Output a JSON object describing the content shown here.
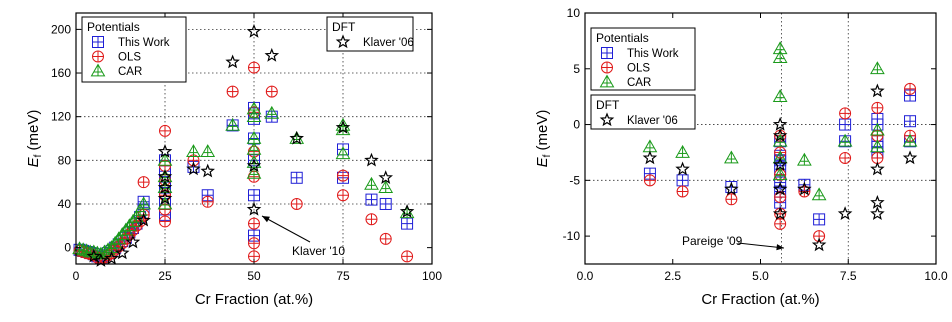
{
  "chart_data": [
    {
      "type": "scatter",
      "xlabel": "Cr Fraction (at.%)",
      "ylabel": "E",
      "ylabel_sub": "f",
      "ylabel_unit": " (meV)",
      "xlim": [
        0,
        100
      ],
      "ylim": [
        -15,
        215
      ],
      "xticks": [
        0,
        25,
        50,
        75,
        100
      ],
      "yticks": [
        0,
        40,
        80,
        120,
        160,
        200
      ],
      "grid": "dotted at x=25,50,75 and y=40,80,120,160,200",
      "legends": [
        {
          "placement": "top-left",
          "title": "Potentials",
          "entries": [
            "This Work",
            "OLS",
            "CAR"
          ]
        },
        {
          "placement": "top-right",
          "title": "DFT",
          "entries": [
            "Klaver '06"
          ]
        }
      ],
      "annotations": [
        {
          "text": "Klaver '10",
          "x": 50,
          "y": 35
        }
      ],
      "series": [
        {
          "name": "This Work",
          "color": "#1f1fd6",
          "marker": "square-plus",
          "points": [
            [
              1,
              -2
            ],
            [
              2,
              -3
            ],
            [
              3,
              -4
            ],
            [
              4,
              -5
            ],
            [
              5,
              -6
            ],
            [
              6,
              -8
            ],
            [
              7,
              -9
            ],
            [
              8,
              -7
            ],
            [
              9,
              -5
            ],
            [
              10,
              -3
            ],
            [
              11,
              0
            ],
            [
              12,
              3
            ],
            [
              13,
              6
            ],
            [
              14,
              9
            ],
            [
              15,
              14
            ],
            [
              16,
              18
            ],
            [
              17,
              22
            ],
            [
              18,
              28
            ],
            [
              19,
              35
            ],
            [
              19,
              42
            ],
            [
              25,
              30
            ],
            [
              25,
              40
            ],
            [
              25,
              50
            ],
            [
              25,
              60
            ],
            [
              25,
              70
            ],
            [
              25,
              80
            ],
            [
              33,
              74
            ],
            [
              37,
              48
            ],
            [
              44,
              112
            ],
            [
              50,
              11
            ],
            [
              50,
              48
            ],
            [
              50,
              80
            ],
            [
              50,
              100
            ],
            [
              50,
              118
            ],
            [
              50,
              128
            ],
            [
              55,
              120
            ],
            [
              62,
              64
            ],
            [
              75,
              64
            ],
            [
              75,
              90
            ],
            [
              83,
              44
            ],
            [
              87,
              40
            ],
            [
              93,
              22
            ]
          ]
        },
        {
          "name": "OLS",
          "color": "#e01a1a",
          "marker": "circle-plus",
          "points": [
            [
              1,
              -3
            ],
            [
              2,
              -4
            ],
            [
              3,
              -5
            ],
            [
              4,
              -6
            ],
            [
              5,
              -7
            ],
            [
              6,
              -9
            ],
            [
              7,
              -10
            ],
            [
              8,
              -9
            ],
            [
              9,
              -7
            ],
            [
              10,
              -5
            ],
            [
              11,
              -2
            ],
            [
              12,
              1
            ],
            [
              13,
              4
            ],
            [
              14,
              8
            ],
            [
              15,
              12
            ],
            [
              16,
              16
            ],
            [
              17,
              20
            ],
            [
              18,
              24
            ],
            [
              19,
              30
            ],
            [
              19,
              60
            ],
            [
              25,
              24
            ],
            [
              25,
              35
            ],
            [
              25,
              48
            ],
            [
              25,
              62
            ],
            [
              25,
              75
            ],
            [
              25,
              107
            ],
            [
              33,
              80
            ],
            [
              37,
              42
            ],
            [
              44,
              143
            ],
            [
              50,
              -8
            ],
            [
              50,
              4
            ],
            [
              50,
              22
            ],
            [
              50,
              65
            ],
            [
              50,
              88
            ],
            [
              50,
              124
            ],
            [
              50,
              165
            ],
            [
              55,
              143
            ],
            [
              62,
              40
            ],
            [
              75,
              48
            ],
            [
              75,
              66
            ],
            [
              83,
              26
            ],
            [
              87,
              8
            ],
            [
              93,
              -8
            ]
          ]
        },
        {
          "name": "CAR",
          "color": "#1a9a1a",
          "marker": "triangle-plus",
          "points": [
            [
              1,
              -1
            ],
            [
              2,
              -2
            ],
            [
              3,
              -3
            ],
            [
              4,
              -4
            ],
            [
              5,
              -4
            ],
            [
              6,
              -5
            ],
            [
              7,
              -6
            ],
            [
              8,
              -4
            ],
            [
              9,
              -2
            ],
            [
              10,
              0
            ],
            [
              11,
              4
            ],
            [
              12,
              8
            ],
            [
              13,
              12
            ],
            [
              14,
              16
            ],
            [
              15,
              20
            ],
            [
              16,
              24
            ],
            [
              17,
              28
            ],
            [
              18,
              34
            ],
            [
              19,
              40
            ],
            [
              25,
              40
            ],
            [
              25,
              55
            ],
            [
              25,
              65
            ],
            [
              25,
              80
            ],
            [
              33,
              88
            ],
            [
              37,
              88
            ],
            [
              44,
              112
            ],
            [
              50,
              68
            ],
            [
              50,
              78
            ],
            [
              50,
              90
            ],
            [
              50,
              100
            ],
            [
              50,
              120
            ],
            [
              50,
              127
            ],
            [
              55,
              123
            ],
            [
              62,
              100
            ],
            [
              75,
              86
            ],
            [
              75,
              108
            ],
            [
              75,
              112
            ],
            [
              83,
              58
            ],
            [
              87,
              55
            ],
            [
              93,
              32
            ]
          ]
        },
        {
          "name": "Klaver '06",
          "color": "#000000",
          "marker": "star",
          "points": [
            [
              5,
              -8
            ],
            [
              7,
              -12
            ],
            [
              10,
              -10
            ],
            [
              13,
              -5
            ],
            [
              16,
              5
            ],
            [
              19,
              25
            ],
            [
              25,
              45
            ],
            [
              25,
              55
            ],
            [
              25,
              65
            ],
            [
              25,
              88
            ],
            [
              33,
              72
            ],
            [
              37,
              70
            ],
            [
              44,
              170
            ],
            [
              50,
              35
            ],
            [
              50,
              75
            ],
            [
              50,
              198
            ],
            [
              55,
              176
            ],
            [
              62,
              100
            ],
            [
              75,
              110
            ],
            [
              83,
              80
            ],
            [
              87,
              64
            ],
            [
              93,
              33
            ]
          ]
        }
      ]
    },
    {
      "type": "scatter",
      "xlabel": "Cr Fraction (at.%)",
      "ylabel": "E",
      "ylabel_sub": "f",
      "ylabel_unit": " (meV)",
      "xlim": [
        0,
        10
      ],
      "ylim": [
        -12.5,
        10
      ],
      "xticks": [
        "0.0",
        "2.5",
        "5.0",
        "7.5",
        "10.0"
      ],
      "yticks": [
        10,
        5,
        0,
        -5,
        -10
      ],
      "grid": "dotted at x=5.6,7.5 and y=0,-5",
      "legends": [
        {
          "placement": "top-left",
          "title": "Potentials",
          "entries": [
            "This Work",
            "OLS",
            "CAR"
          ]
        },
        {
          "placement": "left",
          "title": "DFT",
          "entries": [
            "Klaver '06"
          ]
        }
      ],
      "annotations": [
        {
          "text": "Pareige '09",
          "x": 6.7,
          "y": -10.8
        }
      ],
      "series": [
        {
          "name": "This Work",
          "color": "#1f1fd6",
          "marker": "square-plus",
          "points": [
            [
              1.85,
              -4.4
            ],
            [
              2.78,
              -5.0
            ],
            [
              4.17,
              -5.6
            ],
            [
              5.56,
              -2.8
            ],
            [
              5.56,
              -3.2
            ],
            [
              5.56,
              -4.0
            ],
            [
              5.56,
              -5.2
            ],
            [
              5.56,
              -6.0
            ],
            [
              5.56,
              -7.0
            ],
            [
              5.56,
              -1.5
            ],
            [
              6.25,
              -5.4
            ],
            [
              6.67,
              -8.5
            ],
            [
              7.41,
              0
            ],
            [
              7.41,
              -1.5
            ],
            [
              8.33,
              0.5
            ],
            [
              8.33,
              0
            ],
            [
              8.33,
              -1.5
            ],
            [
              8.33,
              -2.0
            ],
            [
              8.33,
              -2.5
            ],
            [
              9.26,
              2.6
            ],
            [
              9.26,
              0.3
            ],
            [
              9.26,
              -1.5
            ]
          ]
        },
        {
          "name": "OLS",
          "color": "#e01a1a",
          "marker": "circle-plus",
          "points": [
            [
              1.85,
              -5.0
            ],
            [
              2.78,
              -6.0
            ],
            [
              4.17,
              -6.7
            ],
            [
              5.56,
              -1.0
            ],
            [
              5.56,
              -2.5
            ],
            [
              5.56,
              -4.5
            ],
            [
              5.56,
              -6.5
            ],
            [
              5.56,
              -8.0
            ],
            [
              5.56,
              -8.9
            ],
            [
              6.25,
              -6.0
            ],
            [
              6.67,
              -10.0
            ],
            [
              7.41,
              1.0
            ],
            [
              7.41,
              -3.0
            ],
            [
              8.33,
              1.5
            ],
            [
              8.33,
              -1.0
            ],
            [
              8.33,
              -3.0
            ],
            [
              9.26,
              3.2
            ],
            [
              9.26,
              -1.0
            ]
          ]
        },
        {
          "name": "CAR",
          "color": "#1a9a1a",
          "marker": "triangle-plus",
          "points": [
            [
              1.85,
              -2.0
            ],
            [
              2.78,
              -2.5
            ],
            [
              4.17,
              -3.0
            ],
            [
              5.56,
              6.8
            ],
            [
              5.56,
              6.0
            ],
            [
              5.56,
              2.5
            ],
            [
              5.56,
              -1.5
            ],
            [
              5.56,
              -3.0
            ],
            [
              5.56,
              -4.5
            ],
            [
              6.25,
              -3.2
            ],
            [
              6.67,
              -6.3
            ],
            [
              7.41,
              -1.5
            ],
            [
              8.33,
              5.0
            ],
            [
              8.33,
              -0.5
            ],
            [
              8.33,
              -2.0
            ],
            [
              9.26,
              -1.5
            ]
          ]
        },
        {
          "name": "Klaver '06",
          "color": "#000000",
          "marker": "star",
          "points": [
            [
              1.85,
              -3.0
            ],
            [
              2.78,
              -4.0
            ],
            [
              4.17,
              -5.8
            ],
            [
              5.56,
              0
            ],
            [
              5.56,
              -1.0
            ],
            [
              5.56,
              -3.6
            ],
            [
              5.56,
              -5.8
            ],
            [
              5.56,
              -8.0
            ],
            [
              6.25,
              -5.8
            ],
            [
              6.67,
              -10.8
            ],
            [
              7.41,
              -8.0
            ],
            [
              8.33,
              3.0
            ],
            [
              8.33,
              -4.0
            ],
            [
              8.33,
              -7.0
            ],
            [
              8.33,
              -8.0
            ],
            [
              9.26,
              -3.0
            ]
          ]
        }
      ]
    }
  ]
}
